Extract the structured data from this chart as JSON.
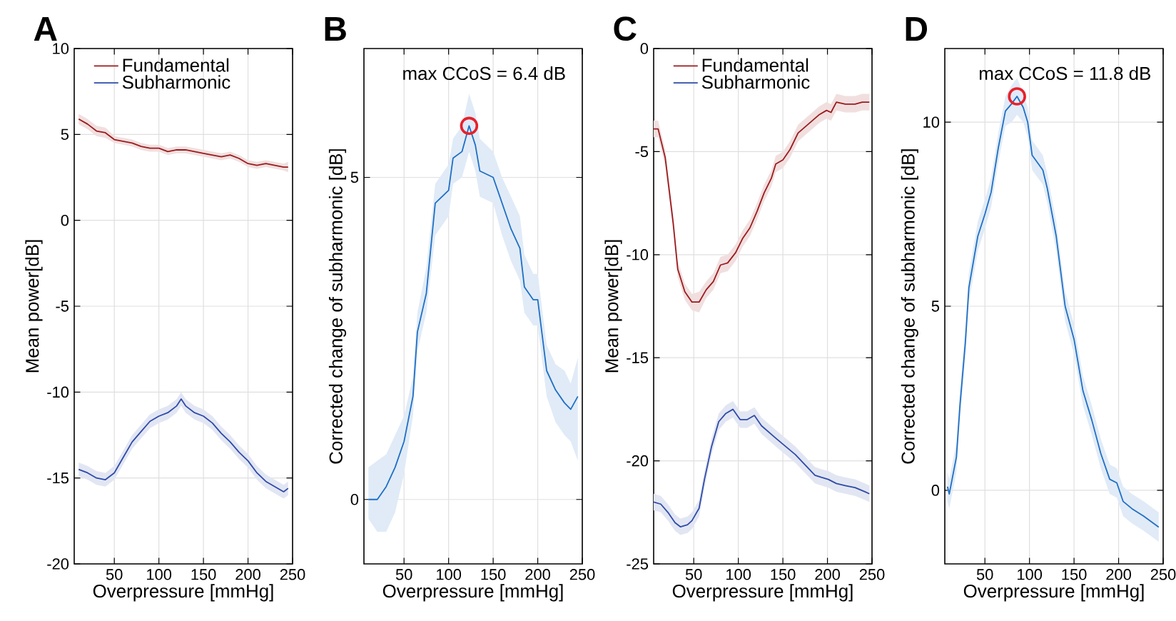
{
  "chart_data": [
    {
      "type": "line",
      "title": "A",
      "xlabel": "Overpressure [mmHg]",
      "ylabel": "Mean power[dB]",
      "xlim": [
        5,
        250
      ],
      "ylim": [
        -20,
        10
      ],
      "xticks": [
        50,
        100,
        150,
        200,
        250
      ],
      "yticks": [
        -20,
        -15,
        -10,
        -5,
        0,
        5,
        10
      ],
      "grid": true,
      "legend": "top left",
      "series": [
        {
          "name": "Fundamental",
          "color": "#9b1b1e",
          "x": [
            10,
            20,
            30,
            40,
            50,
            60,
            70,
            80,
            90,
            100,
            110,
            120,
            130,
            140,
            150,
            160,
            170,
            180,
            190,
            200,
            210,
            220,
            230,
            240,
            245
          ],
          "values": [
            5.9,
            5.6,
            5.2,
            5.1,
            4.7,
            4.6,
            4.5,
            4.3,
            4.2,
            4.2,
            4.0,
            4.1,
            4.1,
            4.0,
            3.9,
            3.8,
            3.7,
            3.8,
            3.6,
            3.3,
            3.2,
            3.3,
            3.2,
            3.1,
            3.1
          ],
          "lower": [
            5.6,
            5.3,
            4.9,
            4.8,
            4.5,
            4.4,
            4.3,
            4.1,
            4.0,
            4.0,
            3.8,
            3.9,
            3.9,
            3.8,
            3.7,
            3.6,
            3.5,
            3.6,
            3.4,
            3.1,
            3.0,
            3.1,
            3.0,
            2.9,
            2.8
          ],
          "upper": [
            6.2,
            5.9,
            5.5,
            5.4,
            4.9,
            4.8,
            4.7,
            4.5,
            4.4,
            4.4,
            4.2,
            4.3,
            4.3,
            4.2,
            4.1,
            4.0,
            3.9,
            4.0,
            3.8,
            3.5,
            3.4,
            3.5,
            3.4,
            3.3,
            3.4
          ]
        },
        {
          "name": "Subharmonic",
          "color": "#2e4aa8",
          "x": [
            10,
            20,
            30,
            40,
            50,
            60,
            70,
            80,
            90,
            100,
            110,
            120,
            125,
            130,
            140,
            150,
            160,
            170,
            180,
            190,
            200,
            210,
            220,
            230,
            240,
            245
          ],
          "values": [
            -14.5,
            -14.7,
            -15.0,
            -15.1,
            -14.7,
            -13.8,
            -12.9,
            -12.3,
            -11.7,
            -11.4,
            -11.2,
            -10.8,
            -10.4,
            -10.8,
            -11.2,
            -11.4,
            -11.8,
            -12.4,
            -12.9,
            -13.5,
            -14.0,
            -14.7,
            -15.2,
            -15.5,
            -15.8,
            -15.6
          ],
          "lower": [
            -14.9,
            -15.1,
            -15.4,
            -15.5,
            -15.1,
            -14.2,
            -13.3,
            -12.7,
            -12.1,
            -11.8,
            -11.6,
            -11.2,
            -10.8,
            -11.2,
            -11.6,
            -11.8,
            -12.2,
            -12.8,
            -13.3,
            -13.9,
            -14.4,
            -15.1,
            -15.6,
            -15.9,
            -16.2,
            -16.0
          ],
          "upper": [
            -14.1,
            -14.3,
            -14.6,
            -14.7,
            -14.3,
            -13.4,
            -12.5,
            -11.9,
            -11.3,
            -11.0,
            -10.8,
            -10.4,
            -10.0,
            -10.4,
            -10.8,
            -11.0,
            -11.4,
            -12.0,
            -12.5,
            -13.1,
            -13.6,
            -14.3,
            -14.8,
            -15.1,
            -15.4,
            -15.2
          ]
        }
      ]
    },
    {
      "type": "line",
      "title": "B",
      "xlabel": "Overpressure [mmHg]",
      "ylabel": "Corrected change of subharmonic [dB]",
      "xlim": [
        5,
        250
      ],
      "ylim": [
        -1,
        7
      ],
      "xticks": [
        50,
        100,
        150,
        200,
        250
      ],
      "yticks": [
        0,
        5
      ],
      "grid": true,
      "annotations": [
        "max CCoS = 6.4 dB"
      ],
      "series": [
        {
          "color": "#1f6fc4",
          "x": [
            10,
            20,
            30,
            40,
            50,
            60,
            65,
            75,
            85,
            100,
            105,
            115,
            123,
            130,
            135,
            150,
            160,
            170,
            180,
            185,
            195,
            200,
            210,
            220,
            230,
            237,
            245
          ],
          "values": [
            0.0,
            0.0,
            0.2,
            0.5,
            0.9,
            1.6,
            2.6,
            3.2,
            4.6,
            4.8,
            5.3,
            5.4,
            5.8,
            5.5,
            5.1,
            5.0,
            4.6,
            4.2,
            3.9,
            3.3,
            3.1,
            3.1,
            2.0,
            1.7,
            1.5,
            1.4,
            1.6
          ],
          "lower": [
            -0.3,
            -0.5,
            -0.5,
            -0.2,
            0.4,
            1.3,
            2.3,
            2.9,
            4.1,
            4.4,
            4.9,
            5.0,
            5.4,
            5.1,
            4.7,
            4.6,
            4.1,
            3.7,
            3.4,
            2.9,
            2.7,
            2.7,
            1.6,
            1.2,
            1.0,
            0.9,
            0.6
          ],
          "upper": [
            0.5,
            0.6,
            0.7,
            1.0,
            1.3,
            1.9,
            2.9,
            3.6,
            4.9,
            5.2,
            5.6,
            5.8,
            6.3,
            6.0,
            5.6,
            5.4,
            5.0,
            4.7,
            4.4,
            3.8,
            3.5,
            3.5,
            2.4,
            2.1,
            2.0,
            1.8,
            2.2
          ]
        },
        {
          "type": "scatter",
          "marker": "circle",
          "color": "#e8202a",
          "x": [
            123
          ],
          "values": [
            5.8
          ]
        }
      ]
    },
    {
      "type": "line",
      "title": "C",
      "xlabel": "Overpressure [mmHg]",
      "ylabel": "Mean power[dB]",
      "xlim": [
        5,
        250
      ],
      "ylim": [
        -25,
        0
      ],
      "xticks": [
        50,
        100,
        150,
        200,
        250
      ],
      "yticks": [
        -25,
        -20,
        -15,
        -10,
        -5,
        0
      ],
      "grid": true,
      "legend": "top left",
      "series": [
        {
          "name": "Fundamental",
          "color": "#9b1b1e",
          "x": [
            5,
            10,
            18,
            27,
            32,
            40,
            48,
            56,
            64,
            72,
            80,
            88,
            97,
            105,
            113,
            121,
            129,
            137,
            142,
            150,
            158,
            167,
            175,
            183,
            191,
            199,
            204,
            210,
            220,
            231,
            239,
            247
          ],
          "values": [
            -3.9,
            -3.9,
            -5.3,
            -8.5,
            -10.7,
            -11.8,
            -12.3,
            -12.3,
            -11.7,
            -11.3,
            -10.5,
            -10.4,
            -9.9,
            -9.2,
            -8.7,
            -7.9,
            -7.0,
            -6.3,
            -5.6,
            -5.4,
            -4.9,
            -4.1,
            -3.8,
            -3.5,
            -3.2,
            -3.0,
            -3.1,
            -2.6,
            -2.7,
            -2.7,
            -2.6,
            -2.6
          ],
          "lower": [
            -4.3,
            -4.3,
            -5.7,
            -8.9,
            -11.1,
            -12.2,
            -12.7,
            -12.8,
            -12.1,
            -11.7,
            -10.9,
            -10.8,
            -10.3,
            -9.6,
            -9.1,
            -8.3,
            -7.4,
            -6.7,
            -6.0,
            -5.8,
            -5.3,
            -4.5,
            -4.2,
            -3.9,
            -3.6,
            -3.4,
            -3.5,
            -3.0,
            -3.1,
            -3.1,
            -3.0,
            -3.0
          ],
          "upper": [
            -3.5,
            -3.5,
            -4.9,
            -8.1,
            -10.3,
            -11.4,
            -11.9,
            -11.8,
            -11.3,
            -10.9,
            -10.1,
            -10.0,
            -9.5,
            -8.8,
            -8.3,
            -7.5,
            -6.6,
            -5.9,
            -5.2,
            -5.0,
            -4.5,
            -3.7,
            -3.4,
            -3.1,
            -2.8,
            -2.6,
            -2.7,
            -2.2,
            -2.3,
            -2.3,
            -2.2,
            -2.2
          ]
        },
        {
          "name": "Subharmonic",
          "color": "#2e4aa8",
          "x": [
            5,
            13,
            21,
            29,
            35,
            43,
            48,
            56,
            62,
            70,
            78,
            86,
            94,
            102,
            110,
            118,
            126,
            134,
            142,
            153,
            164,
            175,
            186,
            193,
            201,
            210,
            220,
            231,
            242,
            247
          ],
          "values": [
            -22.0,
            -22.1,
            -22.5,
            -23.0,
            -23.2,
            -23.1,
            -22.9,
            -22.3,
            -20.9,
            -19.3,
            -18.1,
            -17.7,
            -17.5,
            -18.0,
            -18.0,
            -17.8,
            -18.3,
            -18.6,
            -18.9,
            -19.3,
            -19.7,
            -20.2,
            -20.7,
            -20.8,
            -20.9,
            -21.1,
            -21.2,
            -21.3,
            -21.5,
            -21.6
          ],
          "lower": [
            -22.4,
            -22.5,
            -22.9,
            -23.4,
            -23.6,
            -23.5,
            -23.3,
            -22.7,
            -21.3,
            -19.7,
            -18.5,
            -18.1,
            -17.9,
            -18.4,
            -18.4,
            -18.2,
            -18.7,
            -19.0,
            -19.3,
            -19.7,
            -20.1,
            -20.6,
            -21.1,
            -21.2,
            -21.3,
            -21.5,
            -21.6,
            -21.7,
            -21.9,
            -22.0
          ],
          "upper": [
            -21.6,
            -21.7,
            -22.1,
            -22.6,
            -22.8,
            -22.7,
            -22.5,
            -21.9,
            -20.5,
            -18.9,
            -17.7,
            -17.3,
            -17.1,
            -17.6,
            -17.6,
            -17.4,
            -17.9,
            -18.2,
            -18.5,
            -18.9,
            -19.3,
            -19.8,
            -20.3,
            -20.4,
            -20.5,
            -20.7,
            -20.8,
            -20.9,
            -21.1,
            -21.2
          ]
        }
      ]
    },
    {
      "type": "line",
      "title": "D",
      "xlabel": "Overpressure [mmHg]",
      "ylabel": "Corrected change of subharmonic [dB]",
      "xlim": [
        5,
        250
      ],
      "ylim": [
        -2,
        12
      ],
      "xticks": [
        50,
        100,
        150,
        200,
        250
      ],
      "yticks": [
        0,
        5,
        10
      ],
      "grid": true,
      "annotations": [
        "max CCoS = 11.8 dB"
      ],
      "series": [
        {
          "color": "#1f6fc4",
          "x": [
            8,
            10,
            18,
            22,
            28,
            32,
            42,
            50,
            57,
            65,
            73,
            80,
            86,
            93,
            98,
            103,
            115,
            120,
            130,
            140,
            150,
            160,
            170,
            180,
            190,
            198,
            205,
            215,
            228,
            245
          ],
          "values": [
            0.1,
            -0.1,
            0.9,
            2.3,
            4.0,
            5.5,
            6.9,
            7.5,
            8.1,
            9.3,
            10.3,
            10.5,
            10.7,
            10.4,
            10.0,
            9.1,
            8.7,
            8.2,
            6.9,
            5.0,
            4.1,
            2.7,
            1.9,
            1.0,
            0.3,
            0.2,
            -0.3,
            -0.5,
            -0.7,
            -1.0
          ],
          "lower": [
            -0.3,
            -0.5,
            0.5,
            1.9,
            3.6,
            5.1,
            6.5,
            7.1,
            7.7,
            8.9,
            9.9,
            10.0,
            10.2,
            10.0,
            9.6,
            8.7,
            8.3,
            7.8,
            6.5,
            4.6,
            3.7,
            2.3,
            1.5,
            0.6,
            -0.1,
            -0.2,
            -0.7,
            -0.9,
            -1.1,
            -1.4
          ],
          "upper": [
            0.5,
            0.3,
            1.3,
            2.7,
            4.4,
            5.9,
            7.3,
            7.9,
            8.5,
            9.7,
            10.7,
            11.0,
            11.2,
            10.8,
            10.4,
            9.5,
            9.1,
            8.6,
            7.3,
            5.4,
            4.5,
            3.1,
            2.3,
            1.4,
            0.7,
            0.6,
            0.1,
            -0.1,
            -0.3,
            -0.6
          ]
        },
        {
          "type": "scatter",
          "marker": "circle",
          "color": "#e8202a",
          "x": [
            86
          ],
          "values": [
            10.7
          ]
        }
      ]
    }
  ]
}
